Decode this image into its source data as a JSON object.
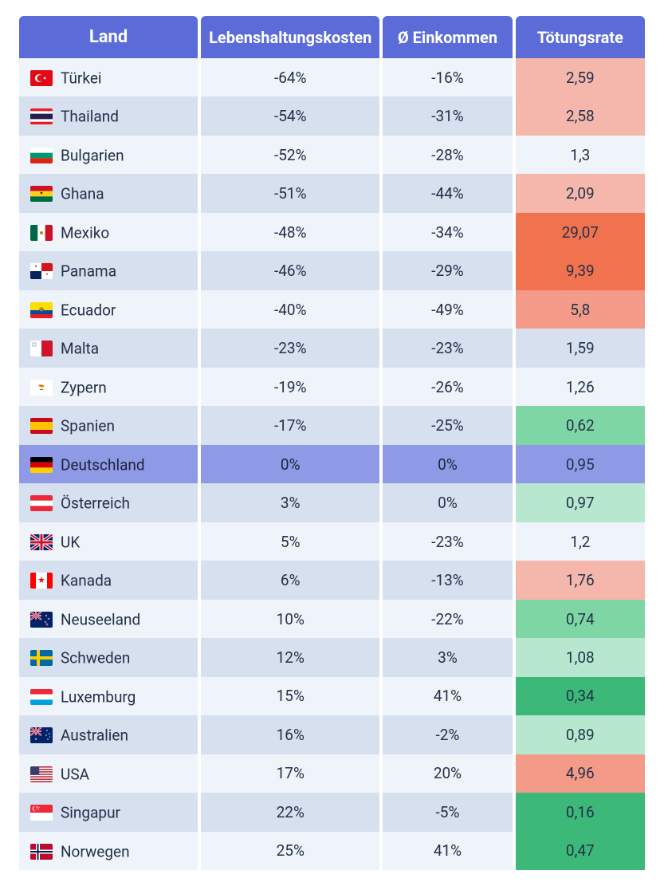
{
  "table": {
    "type": "table",
    "header_bg": "#5b6bd8",
    "header_color": "#ffffff",
    "row_alt_colors": [
      "#eff4fa",
      "#d6e0ef"
    ],
    "highlight_row_bg": "#8f9ae6",
    "highlight_row_color": "#1b2338",
    "text_color": "#233048",
    "font_size_header": 20,
    "font_size_cell": 19,
    "columns": [
      {
        "key": "country",
        "label": "Land",
        "width": "29%"
      },
      {
        "key": "cost",
        "label": "Lebenshaltungskosten",
        "width": "29%"
      },
      {
        "key": "income",
        "label": "Ø Einkommen",
        "width": "21%"
      },
      {
        "key": "rate",
        "label": "Tötungsrate",
        "width": "21%"
      }
    ],
    "rate_palette": {
      "deep_green": "#3cb878",
      "green": "#7ed6a4",
      "light_green": "#b7e8cf",
      "neutral": null,
      "light_red": "#f5b7ab",
      "red": "#f39a88",
      "deep_red": "#f1724f"
    },
    "rows": [
      {
        "country": "Türkei",
        "flag_svg": "tr",
        "cost": "-64%",
        "income": "-16%",
        "rate": "2,59",
        "rate_level": "light_red",
        "highlight": false
      },
      {
        "country": "Thailand",
        "flag_svg": "th",
        "cost": "-54%",
        "income": "-31%",
        "rate": "2,58",
        "rate_level": "light_red",
        "highlight": false
      },
      {
        "country": "Bulgarien",
        "flag_svg": "bg",
        "cost": "-52%",
        "income": "-28%",
        "rate": "1,3",
        "rate_level": "neutral",
        "highlight": false
      },
      {
        "country": "Ghana",
        "flag_svg": "gh",
        "cost": "-51%",
        "income": "-44%",
        "rate": "2,09",
        "rate_level": "light_red",
        "highlight": false
      },
      {
        "country": "Mexiko",
        "flag_svg": "mx",
        "cost": "-48%",
        "income": "-34%",
        "rate": "29,07",
        "rate_level": "deep_red",
        "highlight": false
      },
      {
        "country": "Panama",
        "flag_svg": "pa",
        "cost": "-46%",
        "income": "-29%",
        "rate": "9,39",
        "rate_level": "deep_red",
        "highlight": false
      },
      {
        "country": "Ecuador",
        "flag_svg": "ec",
        "cost": "-40%",
        "income": "-49%",
        "rate": "5,8",
        "rate_level": "red",
        "highlight": false
      },
      {
        "country": "Malta",
        "flag_svg": "mt",
        "cost": "-23%",
        "income": "-23%",
        "rate": "1,59",
        "rate_level": "neutral",
        "highlight": false
      },
      {
        "country": "Zypern",
        "flag_svg": "cy",
        "cost": "-19%",
        "income": "-26%",
        "rate": "1,26",
        "rate_level": "neutral",
        "highlight": false
      },
      {
        "country": "Spanien",
        "flag_svg": "es",
        "cost": "-17%",
        "income": "-25%",
        "rate": "0,62",
        "rate_level": "green",
        "highlight": false
      },
      {
        "country": "Deutschland",
        "flag_svg": "de",
        "cost": "0%",
        "income": "0%",
        "rate": "0,95",
        "rate_level": "highlight",
        "highlight": true
      },
      {
        "country": "Österreich",
        "flag_svg": "at",
        "cost": "3%",
        "income": "0%",
        "rate": "0,97",
        "rate_level": "light_green",
        "highlight": false
      },
      {
        "country": "UK",
        "flag_svg": "gb",
        "cost": "5%",
        "income": "-23%",
        "rate": "1,2",
        "rate_level": "neutral",
        "highlight": false
      },
      {
        "country": "Kanada",
        "flag_svg": "ca",
        "cost": "6%",
        "income": "-13%",
        "rate": "1,76",
        "rate_level": "light_red",
        "highlight": false
      },
      {
        "country": "Neuseeland",
        "flag_svg": "nz",
        "cost": "10%",
        "income": "-22%",
        "rate": "0,74",
        "rate_level": "green",
        "highlight": false
      },
      {
        "country": "Schweden",
        "flag_svg": "se",
        "cost": "12%",
        "income": "3%",
        "rate": "1,08",
        "rate_level": "light_green",
        "highlight": false
      },
      {
        "country": "Luxemburg",
        "flag_svg": "lu",
        "cost": "15%",
        "income": "41%",
        "rate": "0,34",
        "rate_level": "deep_green",
        "highlight": false
      },
      {
        "country": "Australien",
        "flag_svg": "au",
        "cost": "16%",
        "income": "-2%",
        "rate": "0,89",
        "rate_level": "light_green",
        "highlight": false
      },
      {
        "country": "USA",
        "flag_svg": "us",
        "cost": "17%",
        "income": "20%",
        "rate": "4,96",
        "rate_level": "red",
        "highlight": false
      },
      {
        "country": "Singapur",
        "flag_svg": "sg",
        "cost": "22%",
        "income": "-5%",
        "rate": "0,16",
        "rate_level": "deep_green",
        "highlight": false
      },
      {
        "country": "Norwegen",
        "flag_svg": "no",
        "cost": "25%",
        "income": "41%",
        "rate": "0,47",
        "rate_level": "deep_green",
        "highlight": false
      }
    ]
  }
}
